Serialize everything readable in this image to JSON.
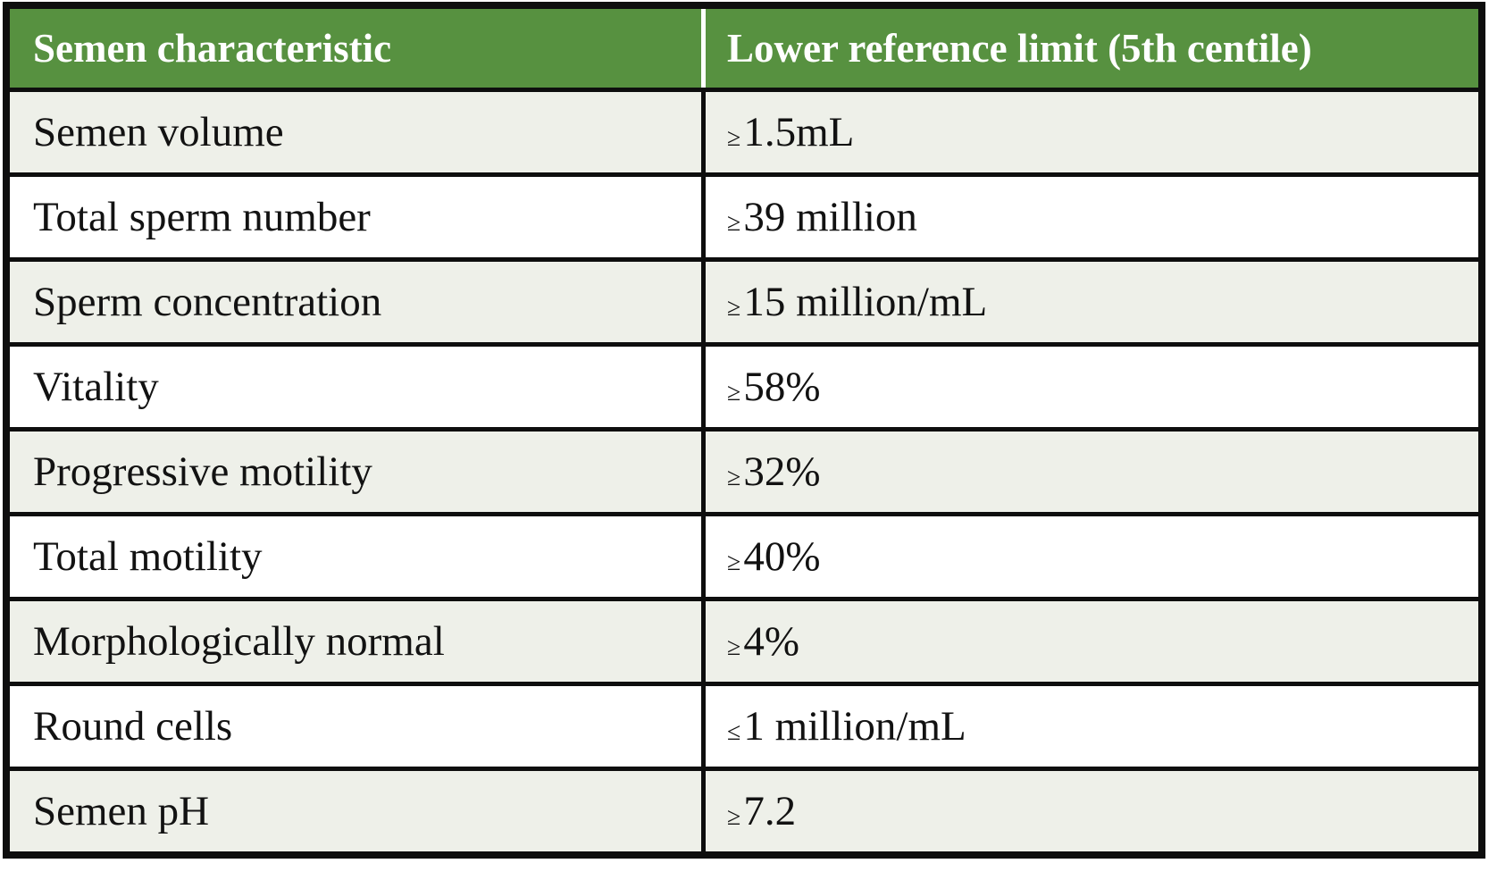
{
  "table": {
    "columns": [
      {
        "label": "Semen characteristic"
      },
      {
        "label": "Lower reference limit (5th centile)"
      }
    ],
    "rows": [
      {
        "characteristic": "Semen volume",
        "symbol": "≥",
        "value": "1.5mL"
      },
      {
        "characteristic": "Total sperm number",
        "symbol": "≥",
        "value": "39 million"
      },
      {
        "characteristic": "Sperm concentration",
        "symbol": "≥",
        "value": "15 million/mL"
      },
      {
        "characteristic": "Vitality",
        "symbol": "≥",
        "value": "58%"
      },
      {
        "characteristic": "Progressive motility",
        "symbol": "≥",
        "value": "32%"
      },
      {
        "characteristic": "Total motility",
        "symbol": "≥",
        "value": "40%"
      },
      {
        "characteristic": "Morphologically normal",
        "symbol": "≥",
        "value": "4%"
      },
      {
        "characteristic": "Round cells",
        "symbol": "≤",
        "value": "1 million/mL"
      },
      {
        "characteristic": "Semen pH",
        "symbol": "≥",
        "value": "7.2"
      }
    ]
  },
  "colors": {
    "header_bg": "#579140",
    "header_text": "#ffffff",
    "row_alt_bg": "#eef0e9",
    "row_bg": "#ffffff",
    "border": "#0e0e0e",
    "body_text": "#121212"
  }
}
